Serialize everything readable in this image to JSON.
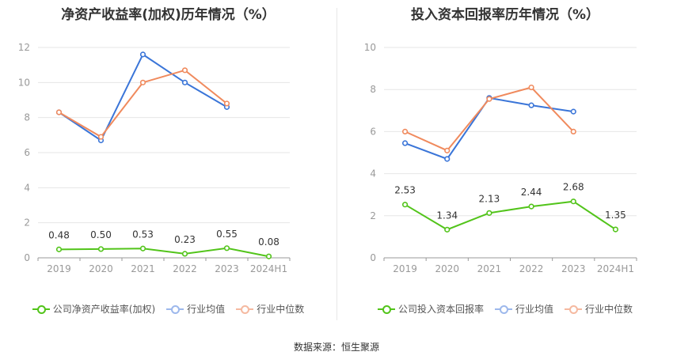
{
  "colors": {
    "company": "#52c41a",
    "avg": "#3a75d8",
    "median": "#f08a5d",
    "grid": "#e6e6e6",
    "axis": "#999999"
  },
  "legend_labels": {
    "left_company": "公司净资产收益率(加权)",
    "right_company": "公司投入资本回报率",
    "avg": "行业均值",
    "median": "行业中位数"
  },
  "source": "数据来源：恒生聚源",
  "chart_data": [
    {
      "type": "line",
      "title": "净资产收益率(加权)历年情况（%）",
      "categories": [
        "2019",
        "2020",
        "2021",
        "2022",
        "2023",
        "2024H1"
      ],
      "ylim": [
        0,
        12
      ],
      "yticks": [
        0,
        2,
        4,
        6,
        8,
        10,
        12
      ],
      "grid": true,
      "legend_position": "bottom",
      "series": [
        {
          "name": "公司净资产收益率(加权)",
          "key": "company",
          "values": [
            0.48,
            0.5,
            0.53,
            0.23,
            0.55,
            0.08
          ],
          "labels": [
            "0.48",
            "0.50",
            "0.53",
            "0.23",
            "0.55",
            "0.08"
          ]
        },
        {
          "name": "行业均值",
          "key": "avg",
          "values": [
            8.3,
            6.7,
            11.6,
            10.0,
            8.6,
            null
          ]
        },
        {
          "name": "行业中位数",
          "key": "median",
          "values": [
            8.3,
            6.9,
            10.0,
            10.7,
            8.8,
            null
          ]
        }
      ]
    },
    {
      "type": "line",
      "title": "投入资本回报率历年情况（%）",
      "categories": [
        "2019",
        "2020",
        "2021",
        "2022",
        "2023",
        "2024H1"
      ],
      "ylim": [
        0,
        10
      ],
      "yticks": [
        0,
        2,
        4,
        6,
        8,
        10
      ],
      "grid": true,
      "legend_position": "bottom",
      "series": [
        {
          "name": "公司投入资本回报率",
          "key": "company",
          "values": [
            2.53,
            1.34,
            2.13,
            2.44,
            2.68,
            1.35
          ],
          "labels": [
            "2.53",
            "1.34",
            "2.13",
            "2.44",
            "2.68",
            "1.35"
          ]
        },
        {
          "name": "行业均值",
          "key": "avg",
          "values": [
            5.45,
            4.7,
            7.6,
            7.25,
            6.95,
            null
          ]
        },
        {
          "name": "行业中位数",
          "key": "median",
          "values": [
            6.0,
            5.1,
            7.55,
            8.1,
            6.0,
            null
          ]
        }
      ]
    }
  ]
}
